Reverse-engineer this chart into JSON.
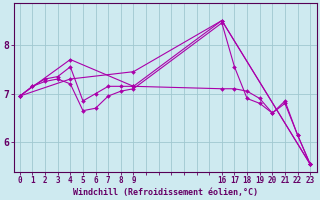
{
  "xlabel": "Windchill (Refroidissement éolien,°C)",
  "bg_color": "#ceeaf0",
  "line_color": "#aa00aa",
  "grid_color": "#a0c8d0",
  "axis_color": "#660066",
  "spine_color": "#550055",
  "ylim": [
    5.4,
    8.85
  ],
  "xlim": [
    -0.5,
    23.5
  ],
  "yticks": [
    6,
    7,
    8
  ],
  "xtick_labeled": [
    0,
    1,
    2,
    3,
    4,
    5,
    6,
    7,
    8,
    9,
    16,
    17,
    18,
    19,
    20,
    21,
    22,
    23
  ],
  "xtick_all": [
    0,
    1,
    2,
    3,
    4,
    5,
    6,
    7,
    8,
    9,
    10,
    11,
    12,
    13,
    14,
    15,
    16,
    17,
    18,
    19,
    20,
    21,
    22,
    23
  ],
  "series": [
    {
      "x": [
        0,
        1,
        2,
        3,
        4,
        5,
        6,
        7,
        8,
        9,
        16,
        17,
        18,
        19,
        20,
        21,
        22,
        23
      ],
      "y": [
        6.95,
        7.15,
        7.25,
        7.3,
        7.2,
        6.65,
        6.7,
        6.95,
        7.05,
        7.1,
        8.45,
        7.55,
        6.9,
        6.8,
        6.6,
        6.8,
        6.15,
        5.55
      ]
    },
    {
      "x": [
        0,
        1,
        2,
        3,
        4,
        5,
        6,
        7,
        8,
        9,
        16,
        17,
        18,
        19,
        20,
        21,
        22,
        23
      ],
      "y": [
        6.95,
        7.15,
        7.3,
        7.35,
        7.55,
        6.85,
        7.0,
        7.15,
        7.15,
        7.15,
        7.1,
        7.1,
        7.05,
        6.9,
        6.6,
        6.85,
        6.15,
        5.55
      ]
    },
    {
      "x": [
        0,
        4,
        9,
        16,
        23
      ],
      "y": [
        6.95,
        7.7,
        7.15,
        8.5,
        5.55
      ]
    },
    {
      "x": [
        0,
        4,
        9,
        16,
        23
      ],
      "y": [
        6.95,
        7.3,
        7.45,
        8.5,
        5.55
      ]
    }
  ]
}
